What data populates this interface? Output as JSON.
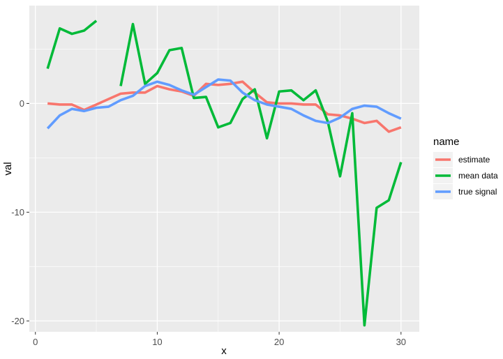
{
  "chart_data": {
    "type": "line",
    "xlabel": "x",
    "ylabel": "val",
    "xlim": [
      -0.5,
      31.5
    ],
    "ylim": [
      -21.0,
      9.0
    ],
    "x_ticks": [
      0,
      10,
      20,
      30
    ],
    "x_tick_labels": [
      "0",
      "10",
      "20",
      "30"
    ],
    "y_ticks": [
      0,
      -10,
      -20
    ],
    "y_tick_labels": [
      "0",
      "-10",
      "-20"
    ],
    "grid": true,
    "legend": {
      "title": "name",
      "position": "right",
      "entries": [
        "estimate",
        "mean data",
        "true signal"
      ]
    },
    "x": [
      1,
      2,
      3,
      4,
      5,
      6,
      7,
      8,
      9,
      10,
      11,
      12,
      13,
      14,
      15,
      16,
      17,
      18,
      19,
      20,
      21,
      22,
      23,
      24,
      25,
      26,
      27,
      28,
      29,
      30
    ],
    "series": [
      {
        "name": "estimate",
        "color": "#F8766D",
        "values": [
          0.0,
          -0.1,
          -0.1,
          -0.6,
          -0.1,
          0.4,
          0.9,
          1.0,
          1.0,
          1.6,
          1.3,
          1.1,
          0.7,
          1.8,
          1.7,
          1.8,
          2.0,
          1.0,
          0.1,
          0.0,
          0.0,
          -0.1,
          -0.1,
          -1.0,
          -1.1,
          -1.4,
          -1.8,
          -1.6,
          -2.6,
          -2.2
        ]
      },
      {
        "name": "mean data",
        "color": "#00BA38",
        "values": [
          3.2,
          6.9,
          6.4,
          6.7,
          7.6,
          null,
          1.6,
          7.3,
          1.8,
          2.8,
          4.9,
          5.1,
          0.5,
          0.6,
          -2.2,
          -1.8,
          0.4,
          1.3,
          -3.2,
          1.1,
          1.2,
          0.3,
          1.2,
          -1.7,
          -6.7,
          -0.9,
          -20.4,
          -9.6,
          -8.9,
          -5.4
        ]
      },
      {
        "name": "true signal",
        "color": "#619CFF",
        "values": [
          -2.3,
          -1.1,
          -0.5,
          -0.7,
          -0.4,
          -0.3,
          0.3,
          0.7,
          1.6,
          2.0,
          1.7,
          1.2,
          0.8,
          1.5,
          2.2,
          2.1,
          1.0,
          0.3,
          -0.1,
          -0.3,
          -0.5,
          -1.1,
          -1.6,
          -1.8,
          -1.3,
          -0.5,
          -0.2,
          -0.3,
          -0.9,
          -1.4
        ]
      }
    ]
  }
}
